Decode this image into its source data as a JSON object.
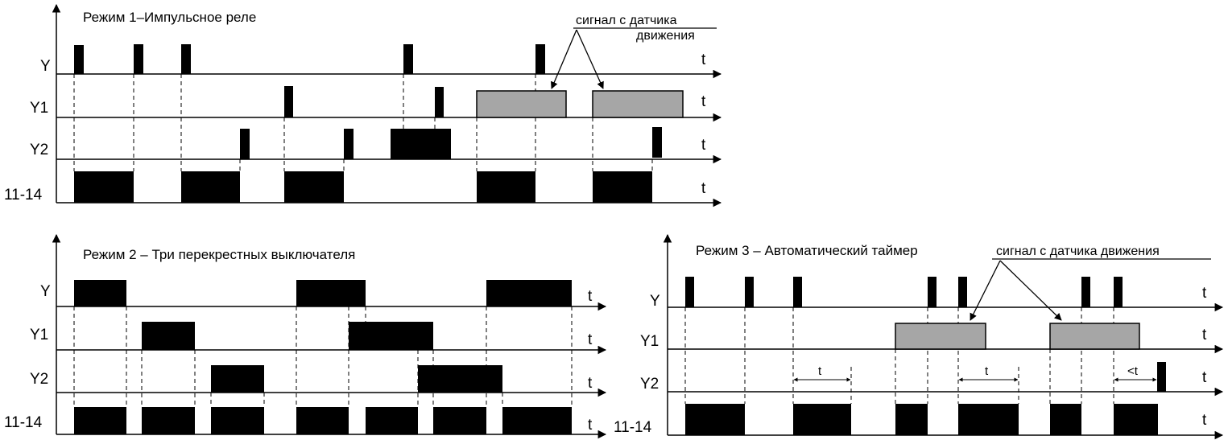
{
  "colors": {
    "pulse": "#000000",
    "motion_signal": "#a6a6a6",
    "line": "#000000",
    "background": "#ffffff"
  },
  "time_symbol": "t",
  "panels": [
    {
      "id": "mode1",
      "title": "Режим 1–Импульсное реле",
      "annotation": [
        "сигнал с датчика",
        "движения"
      ],
      "rows": [
        {
          "label": "Y"
        },
        {
          "label": "Y1"
        },
        {
          "label": "Y2"
        },
        {
          "label": "11-14"
        }
      ]
    },
    {
      "id": "mode2",
      "title": "Режим 2 – Три перекрестных выключателя",
      "rows": [
        {
          "label": "Y"
        },
        {
          "label": "Y1"
        },
        {
          "label": "Y2"
        },
        {
          "label": "11-14"
        }
      ]
    },
    {
      "id": "mode3",
      "title": "Режим 3 – Автоматический таймер",
      "annotation": [
        "сигнал с датчика движения"
      ],
      "rows": [
        {
          "label": "Y"
        },
        {
          "label": "Y1"
        },
        {
          "label": "Y2"
        },
        {
          "label": "11-14"
        }
      ],
      "durations": [
        "t",
        "t",
        "<t"
      ]
    }
  ]
}
